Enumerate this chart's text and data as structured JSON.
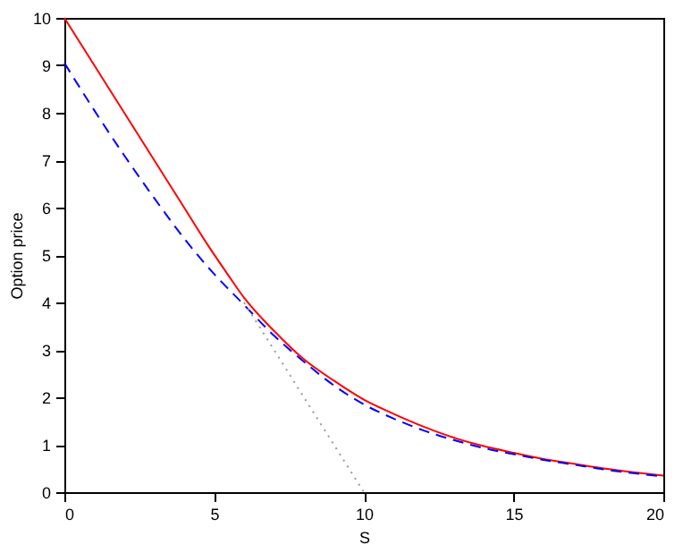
{
  "chart_data": {
    "type": "line",
    "xlabel": "S",
    "ylabel": "Option price",
    "xlim": [
      0,
      20
    ],
    "ylim": [
      0,
      10
    ],
    "xticks": [
      0,
      5,
      10,
      15,
      20
    ],
    "yticks": [
      0,
      1,
      2,
      3,
      4,
      5,
      6,
      7,
      8,
      9,
      10
    ],
    "grid": false,
    "marker": "none",
    "series": [
      {
        "color": "#ff0000",
        "line_style": "solid",
        "x": [
          0,
          1,
          2,
          3,
          4,
          4.8,
          5.5,
          6,
          7,
          8,
          9,
          10,
          11,
          12,
          13,
          14,
          15,
          16,
          17,
          18,
          19,
          20
        ],
        "values": [
          10,
          9,
          8,
          7,
          6,
          5.2,
          4.55,
          4.1,
          3.4,
          2.8,
          2.35,
          1.95,
          1.65,
          1.38,
          1.15,
          0.97,
          0.83,
          0.7,
          0.6,
          0.5,
          0.42,
          0.35
        ]
      },
      {
        "color": "#0000ff",
        "line_style": "dashed",
        "x": [
          0,
          1,
          2,
          3,
          4,
          5,
          6,
          7,
          8,
          9,
          10,
          11,
          12,
          13,
          14,
          15,
          16,
          17,
          18,
          19,
          20
        ],
        "values": [
          9.05,
          8.05,
          7.1,
          6.2,
          5.35,
          4.6,
          3.95,
          3.3,
          2.75,
          2.25,
          1.85,
          1.55,
          1.3,
          1.1,
          0.93,
          0.8,
          0.68,
          0.58,
          0.48,
          0.4,
          0.33
        ]
      },
      {
        "color": "#999999",
        "line_style": "dotted",
        "x": [
          6,
          10
        ],
        "values": [
          4,
          0
        ]
      }
    ]
  }
}
